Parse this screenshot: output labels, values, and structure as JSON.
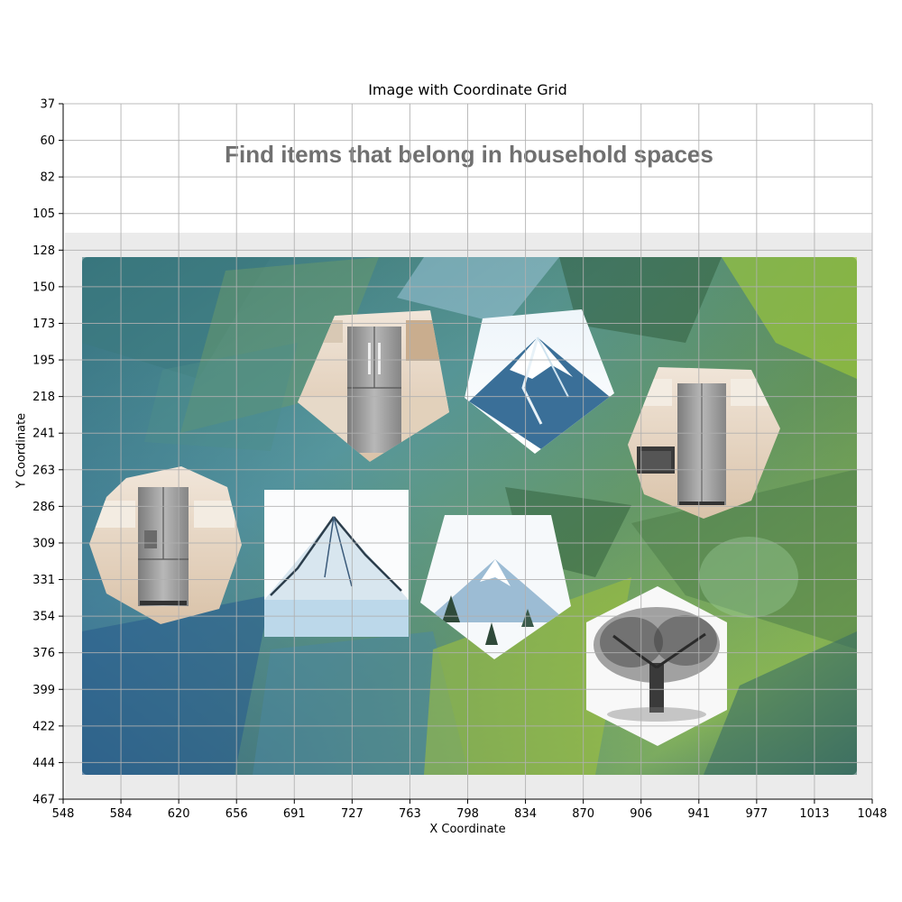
{
  "plot": {
    "title": "Image with Coordinate Grid",
    "xlabel": "X Coordinate",
    "ylabel": "Y Coordinate",
    "x_ticks": [
      "548",
      "584",
      "620",
      "656",
      "691",
      "727",
      "763",
      "798",
      "834",
      "870",
      "906",
      "941",
      "977",
      "1013",
      "1048"
    ],
    "y_ticks": [
      "37",
      "60",
      "82",
      "105",
      "128",
      "150",
      "173",
      "195",
      "218",
      "241",
      "263",
      "286",
      "309",
      "331",
      "354",
      "376",
      "399",
      "422",
      "444",
      "467"
    ]
  },
  "captcha": {
    "instruction": "Find items that belong in household spaces",
    "tiles": [
      {
        "name": "tile-fridge-1",
        "label": "refrigerator",
        "icon": "refrigerator-icon"
      },
      {
        "name": "tile-mountain-1",
        "label": "snowy mountain",
        "icon": "mountain-icon"
      },
      {
        "name": "tile-fridge-2",
        "label": "refrigerator",
        "icon": "refrigerator-icon"
      },
      {
        "name": "tile-fridge-3",
        "label": "refrigerator",
        "icon": "refrigerator-icon"
      },
      {
        "name": "tile-mountain-2",
        "label": "snowy mountain",
        "icon": "mountain-icon"
      },
      {
        "name": "tile-mountain-3",
        "label": "mountain with pines",
        "icon": "mountain-icon"
      },
      {
        "name": "tile-tree",
        "label": "tree",
        "icon": "tree-icon"
      }
    ]
  },
  "colors": {
    "panel": "#ebebeb",
    "grid": "#b0b0b0",
    "instruction_text": "#707070",
    "fridge_steel": "#9a9a9a",
    "mountain_blue": "#3a6f98"
  }
}
